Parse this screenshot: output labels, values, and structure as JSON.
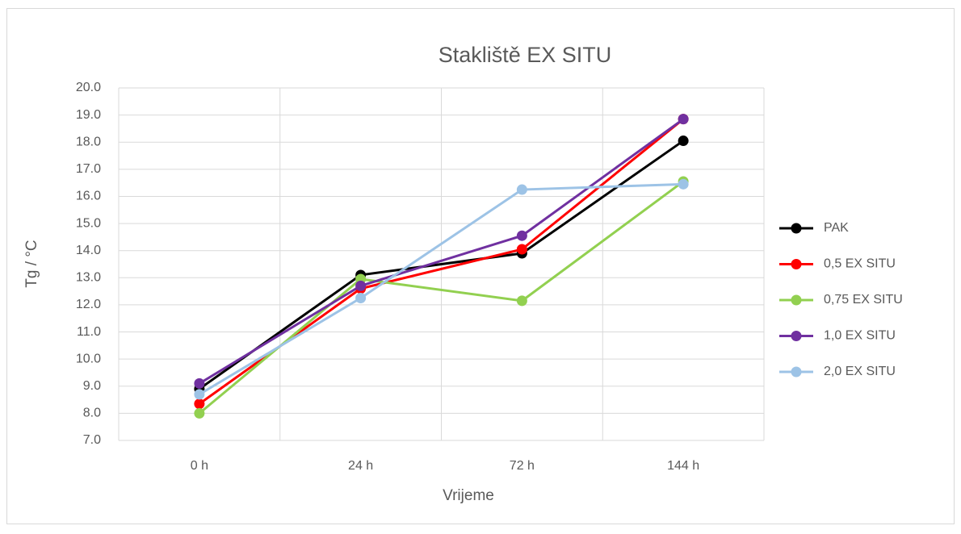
{
  "chart_data": {
    "type": "line",
    "title": "Stakliště EX SITU",
    "xlabel": "Vrijeme",
    "ylabel": "Tg / °C",
    "categories": [
      "0 h",
      "24 h",
      "72 h",
      "144 h"
    ],
    "series": [
      {
        "name": "PAK",
        "color": "#000000",
        "values": [
          8.9,
          13.1,
          13.9,
          18.05
        ]
      },
      {
        "name": "0,5 EX SITU",
        "color": "#ff0000",
        "values": [
          8.35,
          12.6,
          14.05,
          18.85
        ]
      },
      {
        "name": "0,75 EX SITU",
        "color": "#92d050",
        "values": [
          8.0,
          12.95,
          12.15,
          16.55
        ]
      },
      {
        "name": "1,0 EX SITU",
        "color": "#7030a0",
        "values": [
          9.1,
          12.7,
          14.55,
          18.85
        ]
      },
      {
        "name": "2,0 EX SITU",
        "color": "#9dc3e6",
        "values": [
          8.7,
          12.25,
          16.25,
          16.45
        ]
      }
    ],
    "ylim": [
      7,
      20
    ],
    "yticks": [
      {
        "value": 7,
        "label": "7.0"
      },
      {
        "value": 8,
        "label": "8.0"
      },
      {
        "value": 9,
        "label": "9.0"
      },
      {
        "value": 10,
        "label": "10.0"
      },
      {
        "value": 11,
        "label": "11.0"
      },
      {
        "value": 12,
        "label": "12.0"
      },
      {
        "value": 13,
        "label": "13.0"
      },
      {
        "value": 14,
        "label": "14.0"
      },
      {
        "value": 15,
        "label": "15.0"
      },
      {
        "value": 16,
        "label": "16.0"
      },
      {
        "value": 17,
        "label": "17.0"
      },
      {
        "value": 18,
        "label": "18.0"
      },
      {
        "value": 19,
        "label": "19.0"
      },
      {
        "value": 20,
        "label": "20.0"
      }
    ],
    "grid": true,
    "legend": "right"
  }
}
